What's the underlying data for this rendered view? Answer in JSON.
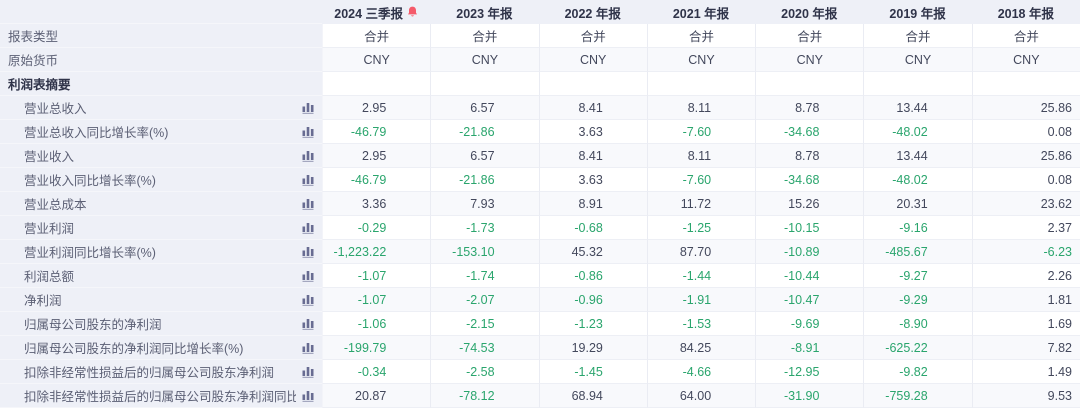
{
  "table": {
    "columns": [
      {
        "label": "2024 三季报",
        "alert_icon": "bell-icon"
      },
      {
        "label": "2023 年报"
      },
      {
        "label": "2022 年报"
      },
      {
        "label": "2021 年报"
      },
      {
        "label": "2020 年报"
      },
      {
        "label": "2019 年报"
      },
      {
        "label": "2018 年报"
      }
    ],
    "rows": [
      {
        "label": "报表类型",
        "type": "info",
        "values": [
          "合并",
          "合并",
          "合并",
          "合并",
          "合并",
          "合并",
          "合并"
        ]
      },
      {
        "label": "原始货币",
        "type": "info",
        "values": [
          "CNY",
          "CNY",
          "CNY",
          "CNY",
          "CNY",
          "CNY",
          "CNY"
        ]
      },
      {
        "label": "利润表摘要",
        "type": "section",
        "values": [
          "",
          "",
          "",
          "",
          "",
          "",
          ""
        ]
      },
      {
        "label": "营业总收入",
        "type": "metric",
        "icon": "bar-chart-icon",
        "values": [
          "2.95",
          "6.57",
          "8.41",
          "8.11",
          "8.78",
          "13.44",
          "25.86"
        ]
      },
      {
        "label": "营业总收入同比增长率(%)",
        "type": "metric",
        "icon": "bar-chart-icon",
        "values": [
          "-46.79",
          "-21.86",
          "3.63",
          "-7.60",
          "-34.68",
          "-48.02",
          "0.08"
        ]
      },
      {
        "label": "营业收入",
        "type": "metric",
        "icon": "bar-chart-icon",
        "values": [
          "2.95",
          "6.57",
          "8.41",
          "8.11",
          "8.78",
          "13.44",
          "25.86"
        ]
      },
      {
        "label": "营业收入同比增长率(%)",
        "type": "metric",
        "icon": "bar-chart-icon",
        "values": [
          "-46.79",
          "-21.86",
          "3.63",
          "-7.60",
          "-34.68",
          "-48.02",
          "0.08"
        ]
      },
      {
        "label": "营业总成本",
        "type": "metric",
        "icon": "bar-chart-icon",
        "values": [
          "3.36",
          "7.93",
          "8.91",
          "11.72",
          "15.26",
          "20.31",
          "23.62"
        ]
      },
      {
        "label": "营业利润",
        "type": "metric",
        "icon": "bar-chart-icon",
        "values": [
          "-0.29",
          "-1.73",
          "-0.68",
          "-1.25",
          "-10.15",
          "-9.16",
          "2.37"
        ]
      },
      {
        "label": "营业利润同比增长率(%)",
        "type": "metric",
        "icon": "bar-chart-icon",
        "values": [
          "-1,223.22",
          "-153.10",
          "45.32",
          "87.70",
          "-10.89",
          "-485.67",
          "-6.23"
        ]
      },
      {
        "label": "利润总额",
        "type": "metric",
        "icon": "bar-chart-icon",
        "values": [
          "-1.07",
          "-1.74",
          "-0.86",
          "-1.44",
          "-10.44",
          "-9.27",
          "2.26"
        ]
      },
      {
        "label": "净利润",
        "type": "metric",
        "icon": "bar-chart-icon",
        "values": [
          "-1.07",
          "-2.07",
          "-0.96",
          "-1.91",
          "-10.47",
          "-9.29",
          "1.81"
        ]
      },
      {
        "label": "归属母公司股东的净利润",
        "type": "metric",
        "icon": "bar-chart-icon",
        "values": [
          "-1.06",
          "-2.15",
          "-1.23",
          "-1.53",
          "-9.69",
          "-8.90",
          "1.69"
        ]
      },
      {
        "label": "归属母公司股东的净利润同比增长率(%)",
        "type": "metric",
        "icon": "bar-chart-icon",
        "values": [
          "-199.79",
          "-74.53",
          "19.29",
          "84.25",
          "-8.91",
          "-625.22",
          "7.82"
        ]
      },
      {
        "label": "扣除非经常性损益后的归属母公司股东净利润",
        "type": "metric",
        "icon": "bar-chart-icon",
        "values": [
          "-0.34",
          "-2.58",
          "-1.45",
          "-4.66",
          "-12.95",
          "-9.82",
          "1.49"
        ]
      },
      {
        "label": "扣除非经常性损益后的归属母公司股东净利润同比增...",
        "type": "metric",
        "icon": "bar-chart-icon",
        "values": [
          "20.87",
          "-78.12",
          "68.94",
          "64.00",
          "-31.90",
          "-759.28",
          "9.53"
        ]
      }
    ]
  },
  "colors": {
    "negative_value": "#2aa56d",
    "positive_value": "#43485c",
    "alert_red": "#f55a6a",
    "chart_icon": "#686c92",
    "header_bg": "#eef0f7",
    "alt_row_bg": "#f8f9fc"
  }
}
